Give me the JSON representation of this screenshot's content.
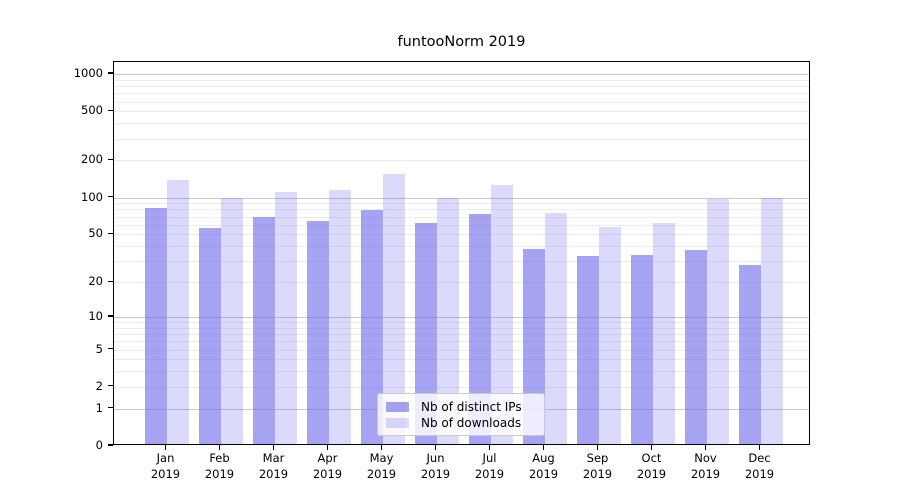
{
  "figure": {
    "background": "#ffffff"
  },
  "chart_data": {
    "type": "bar",
    "title": "funtooNorm 2019",
    "xlabel": "",
    "ylabel": "",
    "year_label": "2019",
    "categories": [
      "Jan",
      "Feb",
      "Mar",
      "Apr",
      "May",
      "Jun",
      "Jul",
      "Aug",
      "Sep",
      "Oct",
      "Nov",
      "Dec"
    ],
    "series": [
      {
        "name": "Nb of distinct IPs",
        "color": "rgba(112,107,236,0.62)",
        "values": [
          82,
          56,
          69,
          64,
          79,
          62,
          73,
          38,
          33,
          34,
          37,
          28
        ]
      },
      {
        "name": "Nb of downloads",
        "color": "rgba(112,107,236,0.25)",
        "values": [
          140,
          100,
          110,
          115,
          155,
          100,
          127,
          75,
          57,
          62,
          98,
          100
        ]
      }
    ],
    "y_scale": "log10(1+v)",
    "y_tick_values": [
      0,
      1,
      2,
      5,
      10,
      20,
      50,
      100,
      200,
      500,
      1000
    ],
    "ylim": [
      0,
      1070
    ],
    "grid": "horizontal",
    "legend_position": "lower center",
    "colors": {
      "grid_major": "#c8c8c8",
      "grid_minor": "#ececec",
      "spine": "#000000",
      "text": "#000000"
    }
  }
}
